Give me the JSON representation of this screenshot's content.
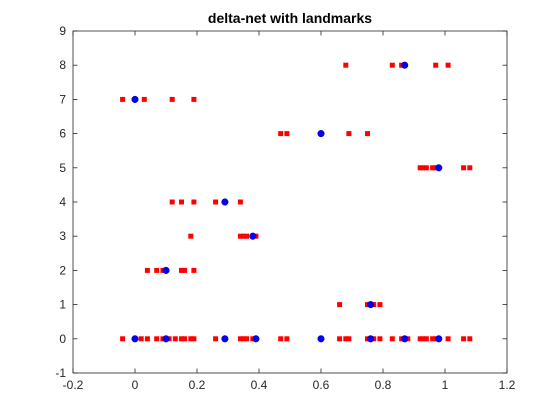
{
  "chart_data": {
    "type": "scatter",
    "title": "delta-net with landmarks",
    "xlabel": "",
    "ylabel": "",
    "xlim": [
      -0.2,
      1.2
    ],
    "ylim": [
      -1,
      9
    ],
    "xticks": [
      -0.2,
      0,
      0.2,
      0.4,
      0.6,
      0.8,
      1,
      1.2
    ],
    "yticks": [
      -1,
      0,
      1,
      2,
      3,
      4,
      5,
      6,
      7,
      8,
      9
    ],
    "xtick_labels": [
      "-0.2",
      "0",
      "0.2",
      "0.4",
      "0.6",
      "0.8",
      "1",
      "1.2"
    ],
    "ytick_labels": [
      "-1",
      "0",
      "1",
      "2",
      "3",
      "4",
      "5",
      "6",
      "7",
      "8",
      "9"
    ],
    "grid": false,
    "box": true,
    "series": [
      {
        "marker": "square",
        "color": "#ff0000",
        "points": [
          [
            -0.04,
            0
          ],
          [
            0.02,
            0
          ],
          [
            0.04,
            0
          ],
          [
            0.07,
            0
          ],
          [
            0.09,
            0
          ],
          [
            0.11,
            0
          ],
          [
            0.13,
            0
          ],
          [
            0.15,
            0
          ],
          [
            0.16,
            0
          ],
          [
            0.18,
            0
          ],
          [
            0.19,
            0
          ],
          [
            0.26,
            0
          ],
          [
            0.29,
            0
          ],
          [
            0.34,
            0
          ],
          [
            0.35,
            0
          ],
          [
            0.36,
            0
          ],
          [
            0.38,
            0
          ],
          [
            0.39,
            0
          ],
          [
            0.47,
            0
          ],
          [
            0.49,
            0
          ],
          [
            0.6,
            0
          ],
          [
            0.66,
            0
          ],
          [
            0.68,
            0
          ],
          [
            0.69,
            0
          ],
          [
            0.75,
            0
          ],
          [
            0.76,
            0
          ],
          [
            0.77,
            0
          ],
          [
            0.79,
            0
          ],
          [
            0.83,
            0
          ],
          [
            0.86,
            0
          ],
          [
            0.87,
            0
          ],
          [
            0.88,
            0
          ],
          [
            0.92,
            0
          ],
          [
            0.93,
            0
          ],
          [
            0.94,
            0
          ],
          [
            0.96,
            0
          ],
          [
            0.97,
            0
          ],
          [
            0.98,
            0
          ],
          [
            1.01,
            0
          ],
          [
            1.06,
            0
          ],
          [
            1.08,
            0
          ],
          [
            0.66,
            1
          ],
          [
            0.75,
            1
          ],
          [
            0.76,
            1
          ],
          [
            0.77,
            1
          ],
          [
            0.79,
            1
          ],
          [
            0.04,
            2
          ],
          [
            0.07,
            2
          ],
          [
            0.09,
            2
          ],
          [
            0.1,
            2
          ],
          [
            0.15,
            2
          ],
          [
            0.16,
            2
          ],
          [
            0.19,
            2
          ],
          [
            0.18,
            3
          ],
          [
            0.34,
            3
          ],
          [
            0.35,
            3
          ],
          [
            0.36,
            3
          ],
          [
            0.38,
            3
          ],
          [
            0.39,
            3
          ],
          [
            0.12,
            4
          ],
          [
            0.15,
            4
          ],
          [
            0.19,
            4
          ],
          [
            0.26,
            4
          ],
          [
            0.29,
            4
          ],
          [
            0.34,
            4
          ],
          [
            0.92,
            5
          ],
          [
            0.93,
            5
          ],
          [
            0.94,
            5
          ],
          [
            0.96,
            5
          ],
          [
            0.97,
            5
          ],
          [
            1.06,
            5
          ],
          [
            1.08,
            5
          ],
          [
            0.47,
            6
          ],
          [
            0.49,
            6
          ],
          [
            0.6,
            6
          ],
          [
            0.69,
            6
          ],
          [
            0.75,
            6
          ],
          [
            -0.04,
            7
          ],
          [
            0.03,
            7
          ],
          [
            0.12,
            7
          ],
          [
            0.19,
            7
          ],
          [
            0.68,
            8
          ],
          [
            0.83,
            8
          ],
          [
            0.86,
            8
          ],
          [
            0.87,
            8
          ],
          [
            0.97,
            8
          ],
          [
            1.01,
            8
          ]
        ]
      },
      {
        "marker": "circle",
        "color": "#0000ff",
        "points": [
          [
            0,
            0
          ],
          [
            0.1,
            0
          ],
          [
            0.29,
            0
          ],
          [
            0.39,
            0
          ],
          [
            0.6,
            0
          ],
          [
            0.76,
            0
          ],
          [
            0.87,
            0
          ],
          [
            0.98,
            0
          ],
          [
            0.76,
            1
          ],
          [
            0.1,
            2
          ],
          [
            0.38,
            3
          ],
          [
            0.29,
            4
          ],
          [
            0.98,
            5
          ],
          [
            0.6,
            6
          ],
          [
            0,
            7
          ],
          [
            0.87,
            8
          ]
        ]
      }
    ]
  }
}
